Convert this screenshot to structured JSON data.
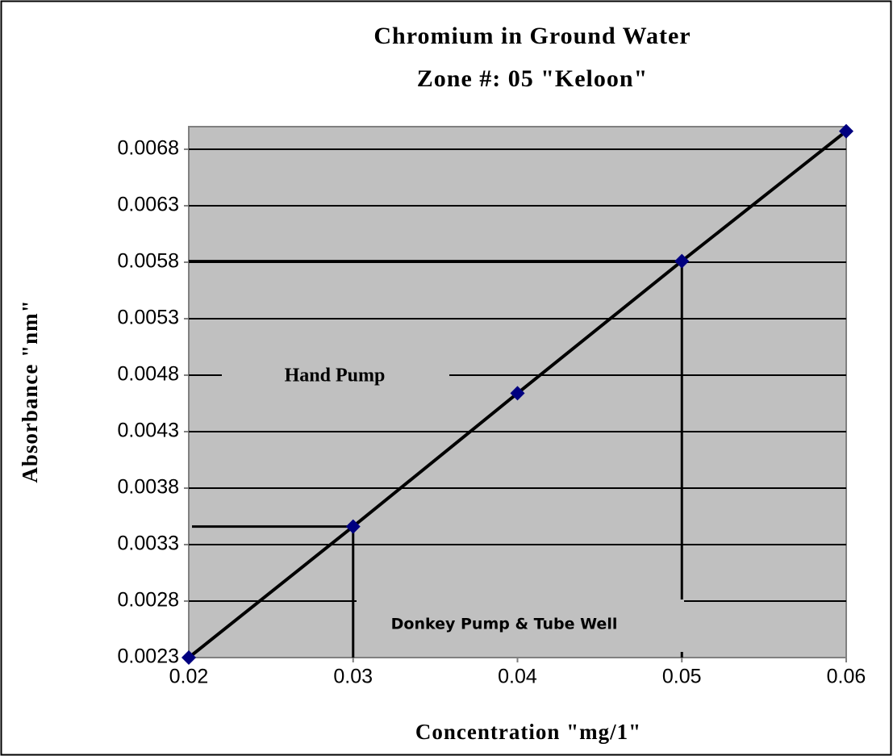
{
  "chart_data": {
    "type": "line",
    "title": "Chromium in Ground Water",
    "subtitle": "Zone #: 05 \"Keloon\"",
    "x_label": "Concentration \"mg/1\"",
    "y_label": "Absorbance \"nm\"",
    "x": [
      0.02,
      0.03,
      0.04,
      0.05,
      0.06
    ],
    "series": [
      {
        "name": "Absorbance",
        "color": "#000080",
        "values": [
          0.0023,
          0.00346,
          0.00464,
          0.00581,
          0.00696
        ]
      }
    ],
    "xlim": [
      0.02,
      0.06
    ],
    "xticks": [
      0.02,
      0.03,
      0.04,
      0.05,
      0.06
    ],
    "ylim": [
      0.0023,
      0.007
    ],
    "yticks": [
      0.0023,
      0.0028,
      0.0033,
      0.0038,
      0.0043,
      0.0048,
      0.0053,
      0.0058,
      0.0063,
      0.0068
    ],
    "grid": true,
    "annotations": [
      "Hand Pump",
      "Donkey Pump & Tube Well"
    ]
  }
}
